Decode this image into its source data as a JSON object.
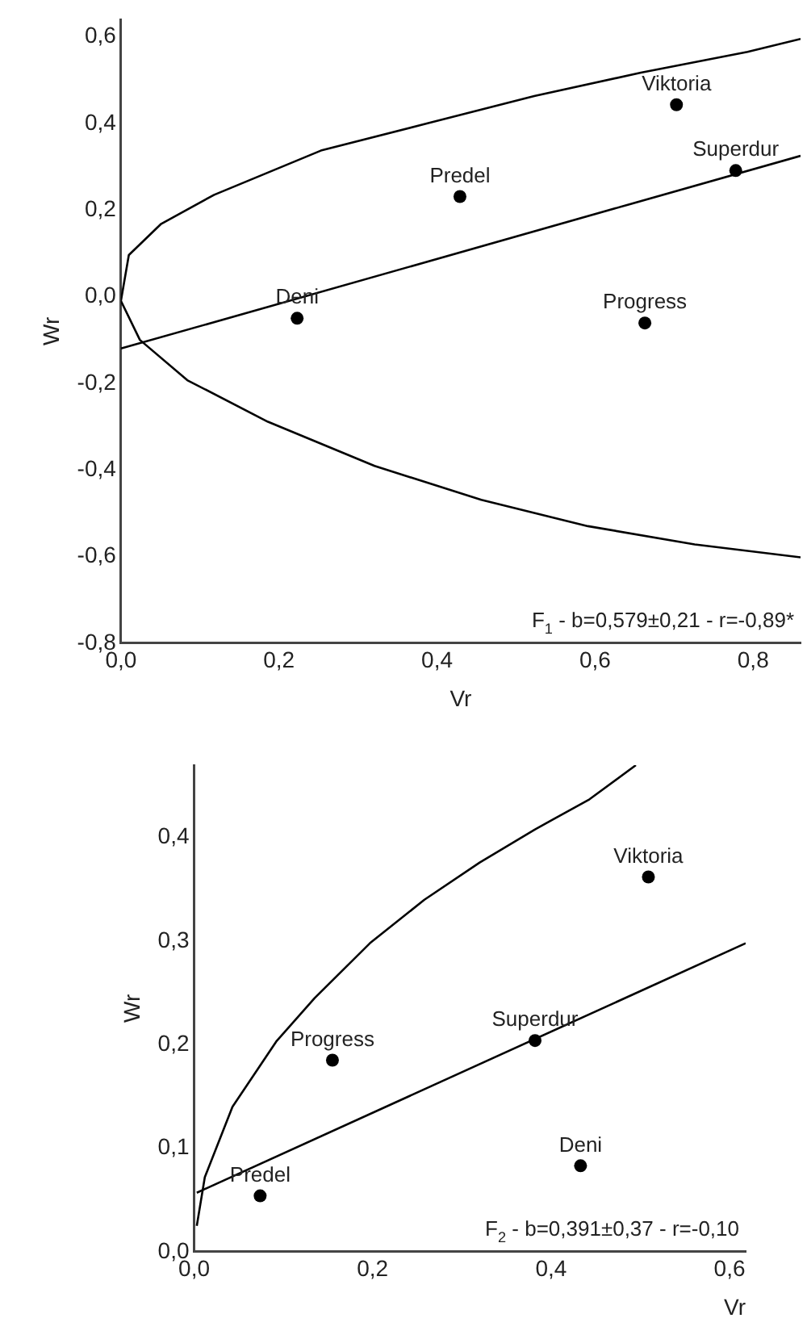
{
  "chart_data": [
    {
      "type": "scatter",
      "xlabel": "Vr",
      "ylabel": "Wr",
      "marker": "circle",
      "xlim": [
        0,
        0.86
      ],
      "ylim": [
        -0.8,
        0.64
      ],
      "xticks": [
        {
          "value": 0,
          "label": "0,0"
        },
        {
          "value": 0.2,
          "label": "0,2"
        },
        {
          "value": 0.4,
          "label": "0,4"
        },
        {
          "value": 0.6,
          "label": "0,6"
        },
        {
          "value": 0.8,
          "label": "0,8"
        }
      ],
      "yticks": [
        {
          "value": -0.8,
          "label": "-0,8"
        },
        {
          "value": -0.6,
          "label": "-0,6"
        },
        {
          "value": -0.4,
          "label": "-0,4"
        },
        {
          "value": -0.2,
          "label": "-0,2"
        },
        {
          "value": 0,
          "label": "0,0"
        },
        {
          "value": 0.2,
          "label": "0,2"
        },
        {
          "value": 0.4,
          "label": "0,4"
        },
        {
          "value": 0.6,
          "label": "0,6"
        }
      ],
      "annotations": [
        "F$_{1}$ - b=0,579±0,21 - r=-0,89*"
      ],
      "series": [
        {
          "type": "line",
          "marker": "none",
          "color": "#000000",
          "x": [
            0.86,
            0.726,
            0.591,
            0.456,
            0.321,
            0.186,
            0.084,
            0.024,
            0,
            0.01,
            0.051,
            0.118,
            0.253,
            0.388,
            0.523,
            0.658,
            0.793,
            0.86
          ],
          "values": [
            -0.602,
            -0.572,
            -0.53,
            -0.469,
            -0.391,
            -0.289,
            -0.193,
            -0.1,
            -0.01,
            0.096,
            0.168,
            0.235,
            0.337,
            0.4,
            0.463,
            0.517,
            0.565,
            0.595
          ]
        },
        {
          "type": "line",
          "marker": "none",
          "color": "#000000",
          "x": [
            0,
            0.86
          ],
          "values": [
            -0.12,
            0.325
          ]
        },
        {
          "type": "scatter",
          "name": "Deni",
          "color": "#000000",
          "x": [
            0.223
          ],
          "values": [
            -0.05
          ]
        },
        {
          "type": "scatter",
          "name": "Predel",
          "color": "#000000",
          "x": [
            0.429
          ],
          "values": [
            0.231
          ]
        },
        {
          "type": "scatter",
          "name": "Viktoria",
          "color": "#000000",
          "x": [
            0.703
          ],
          "values": [
            0.443
          ]
        },
        {
          "type": "scatter",
          "name": "Superdur",
          "color": "#000000",
          "x": [
            0.778
          ],
          "values": [
            0.291
          ]
        },
        {
          "type": "scatter",
          "name": "Progress",
          "color": "#000000",
          "x": [
            0.663
          ],
          "values": [
            -0.061
          ]
        }
      ]
    },
    {
      "type": "scatter",
      "xlabel": "Vr",
      "ylabel": "Wr",
      "marker": "circle",
      "xlim": [
        0,
        0.618
      ],
      "ylim": [
        0,
        0.47
      ],
      "xticks": [
        {
          "value": 0,
          "label": "0,0"
        },
        {
          "value": 0.2,
          "label": "0,2"
        },
        {
          "value": 0.4,
          "label": "0,4"
        },
        {
          "value": 0.6,
          "label": "0,6"
        }
      ],
      "yticks": [
        {
          "value": 0,
          "label": "0,0"
        },
        {
          "value": 0.1,
          "label": "0,1"
        },
        {
          "value": 0.2,
          "label": "0,2"
        },
        {
          "value": 0.3,
          "label": "0,3"
        },
        {
          "value": 0.4,
          "label": "0,4"
        }
      ],
      "annotations": [
        "F$_{2}$ - b=0,391±0,37 - r=-0,10"
      ],
      "series": [
        {
          "type": "line",
          "marker": "none",
          "color": "#000000",
          "x": [
            0.003,
            0.012,
            0.043,
            0.092,
            0.135,
            0.197,
            0.258,
            0.32,
            0.382,
            0.443,
            0.495
          ],
          "values": [
            0.025,
            0.072,
            0.14,
            0.203,
            0.245,
            0.298,
            0.34,
            0.376,
            0.408,
            0.437,
            0.47
          ]
        },
        {
          "type": "line",
          "marker": "none",
          "color": "#000000",
          "x": [
            0.003,
            0.618
          ],
          "values": [
            0.057,
            0.298
          ]
        },
        {
          "type": "scatter",
          "name": "Predel",
          "color": "#000000",
          "x": [
            0.074
          ],
          "values": [
            0.054
          ]
        },
        {
          "type": "scatter",
          "name": "Progress",
          "color": "#000000",
          "x": [
            0.155
          ],
          "values": [
            0.185
          ]
        },
        {
          "type": "scatter",
          "name": "Superdur",
          "color": "#000000",
          "x": [
            0.382
          ],
          "values": [
            0.204
          ]
        },
        {
          "type": "scatter",
          "name": "Deni",
          "color": "#000000",
          "x": [
            0.433
          ],
          "values": [
            0.083
          ]
        },
        {
          "type": "scatter",
          "name": "Viktoria",
          "color": "#000000",
          "x": [
            0.509
          ],
          "values": [
            0.362
          ]
        }
      ]
    }
  ]
}
